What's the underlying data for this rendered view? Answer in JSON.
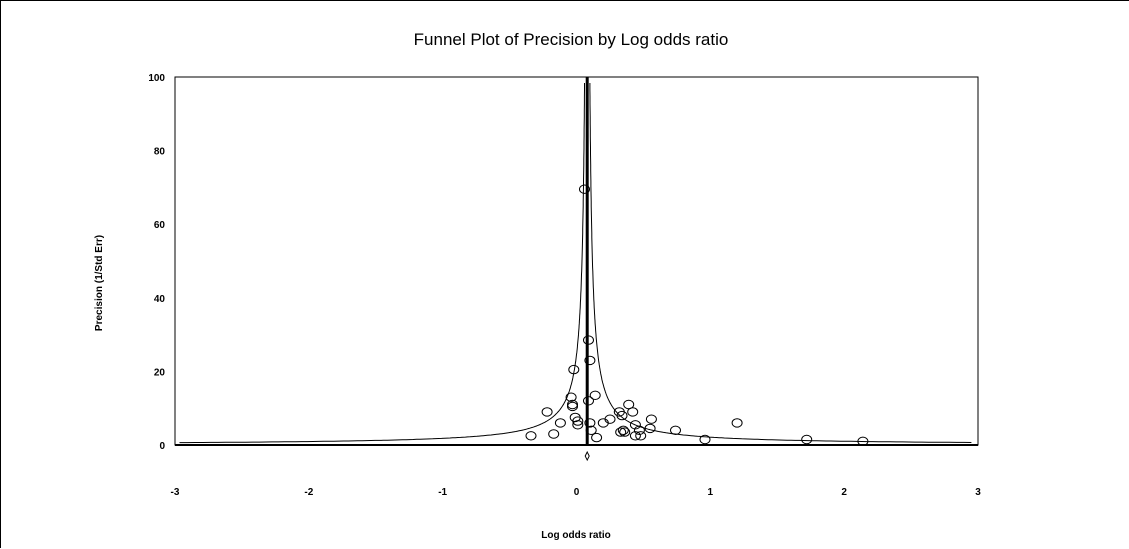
{
  "chart_data": {
    "type": "scatter",
    "title": "Funnel Plot of Precision by Log odds ratio",
    "xlabel": "Log odds ratio",
    "ylabel": "Precision (1/Std Err)",
    "xlim": [
      -3,
      3
    ],
    "ylim": [
      0,
      100
    ],
    "x_ticks": [
      -3,
      -2,
      -1,
      0,
      1,
      2,
      3
    ],
    "y_ticks": [
      0,
      20,
      40,
      60,
      80,
      100
    ],
    "grid": false,
    "legend": "none",
    "center_line_x": 0.08,
    "summary_estimate": {
      "x": 0.08,
      "y": -3
    },
    "points": [
      {
        "x": 0.06,
        "y": 69.5
      },
      {
        "x": 0.09,
        "y": 28.5
      },
      {
        "x": 0.1,
        "y": 23.0
      },
      {
        "x": -0.02,
        "y": 20.5
      },
      {
        "x": 0.14,
        "y": 13.5
      },
      {
        "x": -0.04,
        "y": 13.0
      },
      {
        "x": -0.03,
        "y": 11.0
      },
      {
        "x": 0.09,
        "y": 12.0
      },
      {
        "x": 0.39,
        "y": 11.0
      },
      {
        "x": -0.03,
        "y": 10.5
      },
      {
        "x": -0.22,
        "y": 9.0
      },
      {
        "x": 0.32,
        "y": 9.0
      },
      {
        "x": 0.34,
        "y": 8.0
      },
      {
        "x": 0.42,
        "y": 9.0
      },
      {
        "x": -0.01,
        "y": 7.5
      },
      {
        "x": 0.25,
        "y": 7.0
      },
      {
        "x": 0.56,
        "y": 7.0
      },
      {
        "x": 0.01,
        "y": 6.5
      },
      {
        "x": -0.12,
        "y": 6.0
      },
      {
        "x": 0.1,
        "y": 6.0
      },
      {
        "x": 0.2,
        "y": 6.0
      },
      {
        "x": 0.44,
        "y": 5.5
      },
      {
        "x": 0.01,
        "y": 5.5
      },
      {
        "x": 1.2,
        "y": 6.0
      },
      {
        "x": 0.11,
        "y": 4.0
      },
      {
        "x": 0.47,
        "y": 4.0
      },
      {
        "x": 0.55,
        "y": 4.5
      },
      {
        "x": 0.35,
        "y": 4.0
      },
      {
        "x": 0.74,
        "y": 4.0
      },
      {
        "x": 0.33,
        "y": 3.5
      },
      {
        "x": -0.17,
        "y": 3.0
      },
      {
        "x": -0.34,
        "y": 2.5
      },
      {
        "x": 0.15,
        "y": 2.0
      },
      {
        "x": 0.44,
        "y": 2.5
      },
      {
        "x": 0.36,
        "y": 3.5
      },
      {
        "x": 0.48,
        "y": 2.5
      },
      {
        "x": 0.96,
        "y": 1.5
      },
      {
        "x": 1.72,
        "y": 1.5
      },
      {
        "x": 2.14,
        "y": 1.0
      }
    ]
  }
}
